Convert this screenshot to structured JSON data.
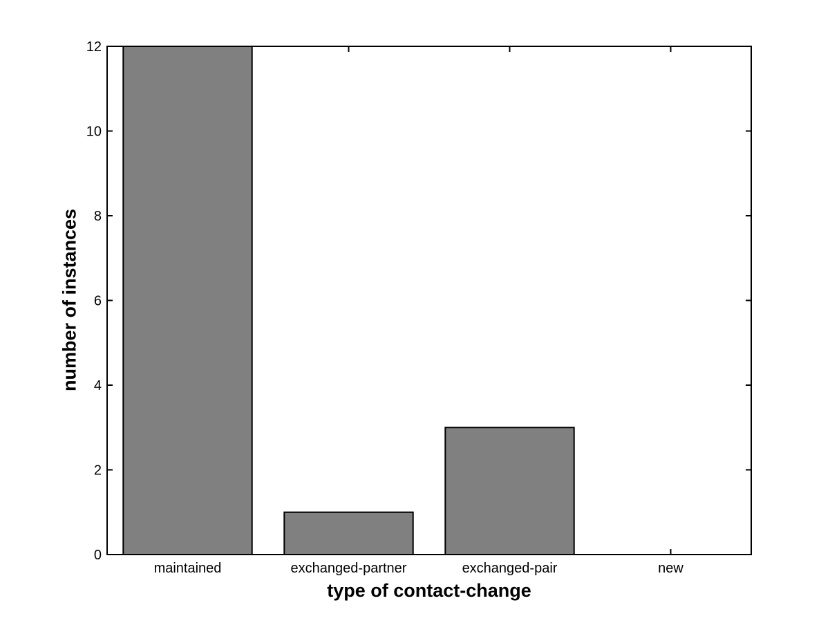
{
  "chart_data": {
    "type": "bar",
    "title": "",
    "xlabel": "type of contact-change",
    "ylabel": "number of instances",
    "categories": [
      "maintained",
      "exchanged-partner",
      "exchanged-pair",
      "new"
    ],
    "values": [
      12,
      1,
      3,
      0
    ],
    "ylim": [
      0,
      12
    ],
    "yticks": [
      0,
      2,
      4,
      6,
      8,
      10,
      12
    ],
    "ytick_labels": [
      "0",
      "2",
      "4",
      "6",
      "8",
      "10",
      "12"
    ],
    "bar_width_fraction": 0.8,
    "grid": false,
    "legend": null,
    "colors": {
      "bar_fill": "#808080",
      "bar_edge": "#000000",
      "axis": "#000000",
      "background": "#ffffff",
      "text": "#000000"
    }
  }
}
